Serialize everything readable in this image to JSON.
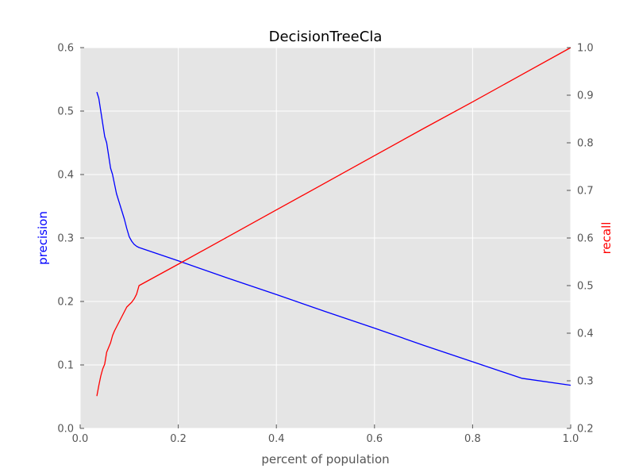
{
  "chart_data": {
    "type": "line",
    "title": "DecisionTreeCla",
    "xlabel": "percent of population",
    "ylabel": "precision",
    "y2label": "recall",
    "xlim": [
      0.0,
      1.0
    ],
    "ylim": [
      0.0,
      0.6
    ],
    "y2lim": [
      0.2,
      1.0
    ],
    "x_ticks": [
      0.0,
      0.2,
      0.4,
      0.6,
      0.8,
      1.0
    ],
    "x_tick_labels": [
      "0.0",
      "0.2",
      "0.4",
      "0.6",
      "0.8",
      "1.0"
    ],
    "y_ticks": [
      0.0,
      0.1,
      0.2,
      0.3,
      0.4,
      0.5,
      0.6
    ],
    "y_tick_labels": [
      "0.0",
      "0.1",
      "0.2",
      "0.3",
      "0.4",
      "0.5",
      "0.6"
    ],
    "y2_ticks": [
      0.2,
      0.3,
      0.4,
      0.5,
      0.6,
      0.7,
      0.8,
      0.9,
      1.0
    ],
    "y2_tick_labels": [
      "0.2",
      "0.3",
      "0.4",
      "0.5",
      "0.6",
      "0.7",
      "0.8",
      "0.9",
      "1.0"
    ],
    "grid": true,
    "colors": {
      "background": "#e5e5e5",
      "grid": "#ffffff",
      "precision": "#0000ff",
      "recall": "#ff0000",
      "tick_text": "#555555"
    },
    "series": [
      {
        "axis": "left",
        "x": [
          0.034,
          0.036,
          0.038,
          0.042,
          0.046,
          0.05,
          0.054,
          0.058,
          0.062,
          0.066,
          0.07,
          0.074,
          0.078,
          0.082,
          0.086,
          0.09,
          0.095,
          0.1,
          0.105,
          0.11,
          0.115,
          0.12,
          0.2,
          0.3,
          0.4,
          0.5,
          0.6,
          0.7,
          0.8,
          0.9,
          1.0
        ],
        "y": [
          0.53,
          0.525,
          0.52,
          0.5,
          0.48,
          0.46,
          0.45,
          0.43,
          0.41,
          0.4,
          0.385,
          0.37,
          0.36,
          0.35,
          0.34,
          0.33,
          0.315,
          0.302,
          0.295,
          0.29,
          0.287,
          0.285,
          0.264,
          0.237,
          0.211,
          0.184,
          0.158,
          0.131,
          0.105,
          0.079,
          0.068
        ]
      },
      {
        "axis": "right",
        "x": [
          0.034,
          0.038,
          0.042,
          0.046,
          0.05,
          0.054,
          0.058,
          0.062,
          0.066,
          0.07,
          0.075,
          0.08,
          0.085,
          0.09,
          0.095,
          0.1,
          0.105,
          0.11,
          0.115,
          0.12,
          0.2,
          0.3,
          0.4,
          0.5,
          0.6,
          0.7,
          0.8,
          0.9,
          1.0
        ],
        "y": [
          0.268,
          0.29,
          0.31,
          0.325,
          0.335,
          0.36,
          0.37,
          0.38,
          0.395,
          0.405,
          0.415,
          0.425,
          0.435,
          0.445,
          0.455,
          0.46,
          0.465,
          0.472,
          0.482,
          0.5,
          0.545,
          0.602,
          0.659,
          0.716,
          0.773,
          0.83,
          0.886,
          0.943,
          1.0
        ]
      }
    ]
  }
}
